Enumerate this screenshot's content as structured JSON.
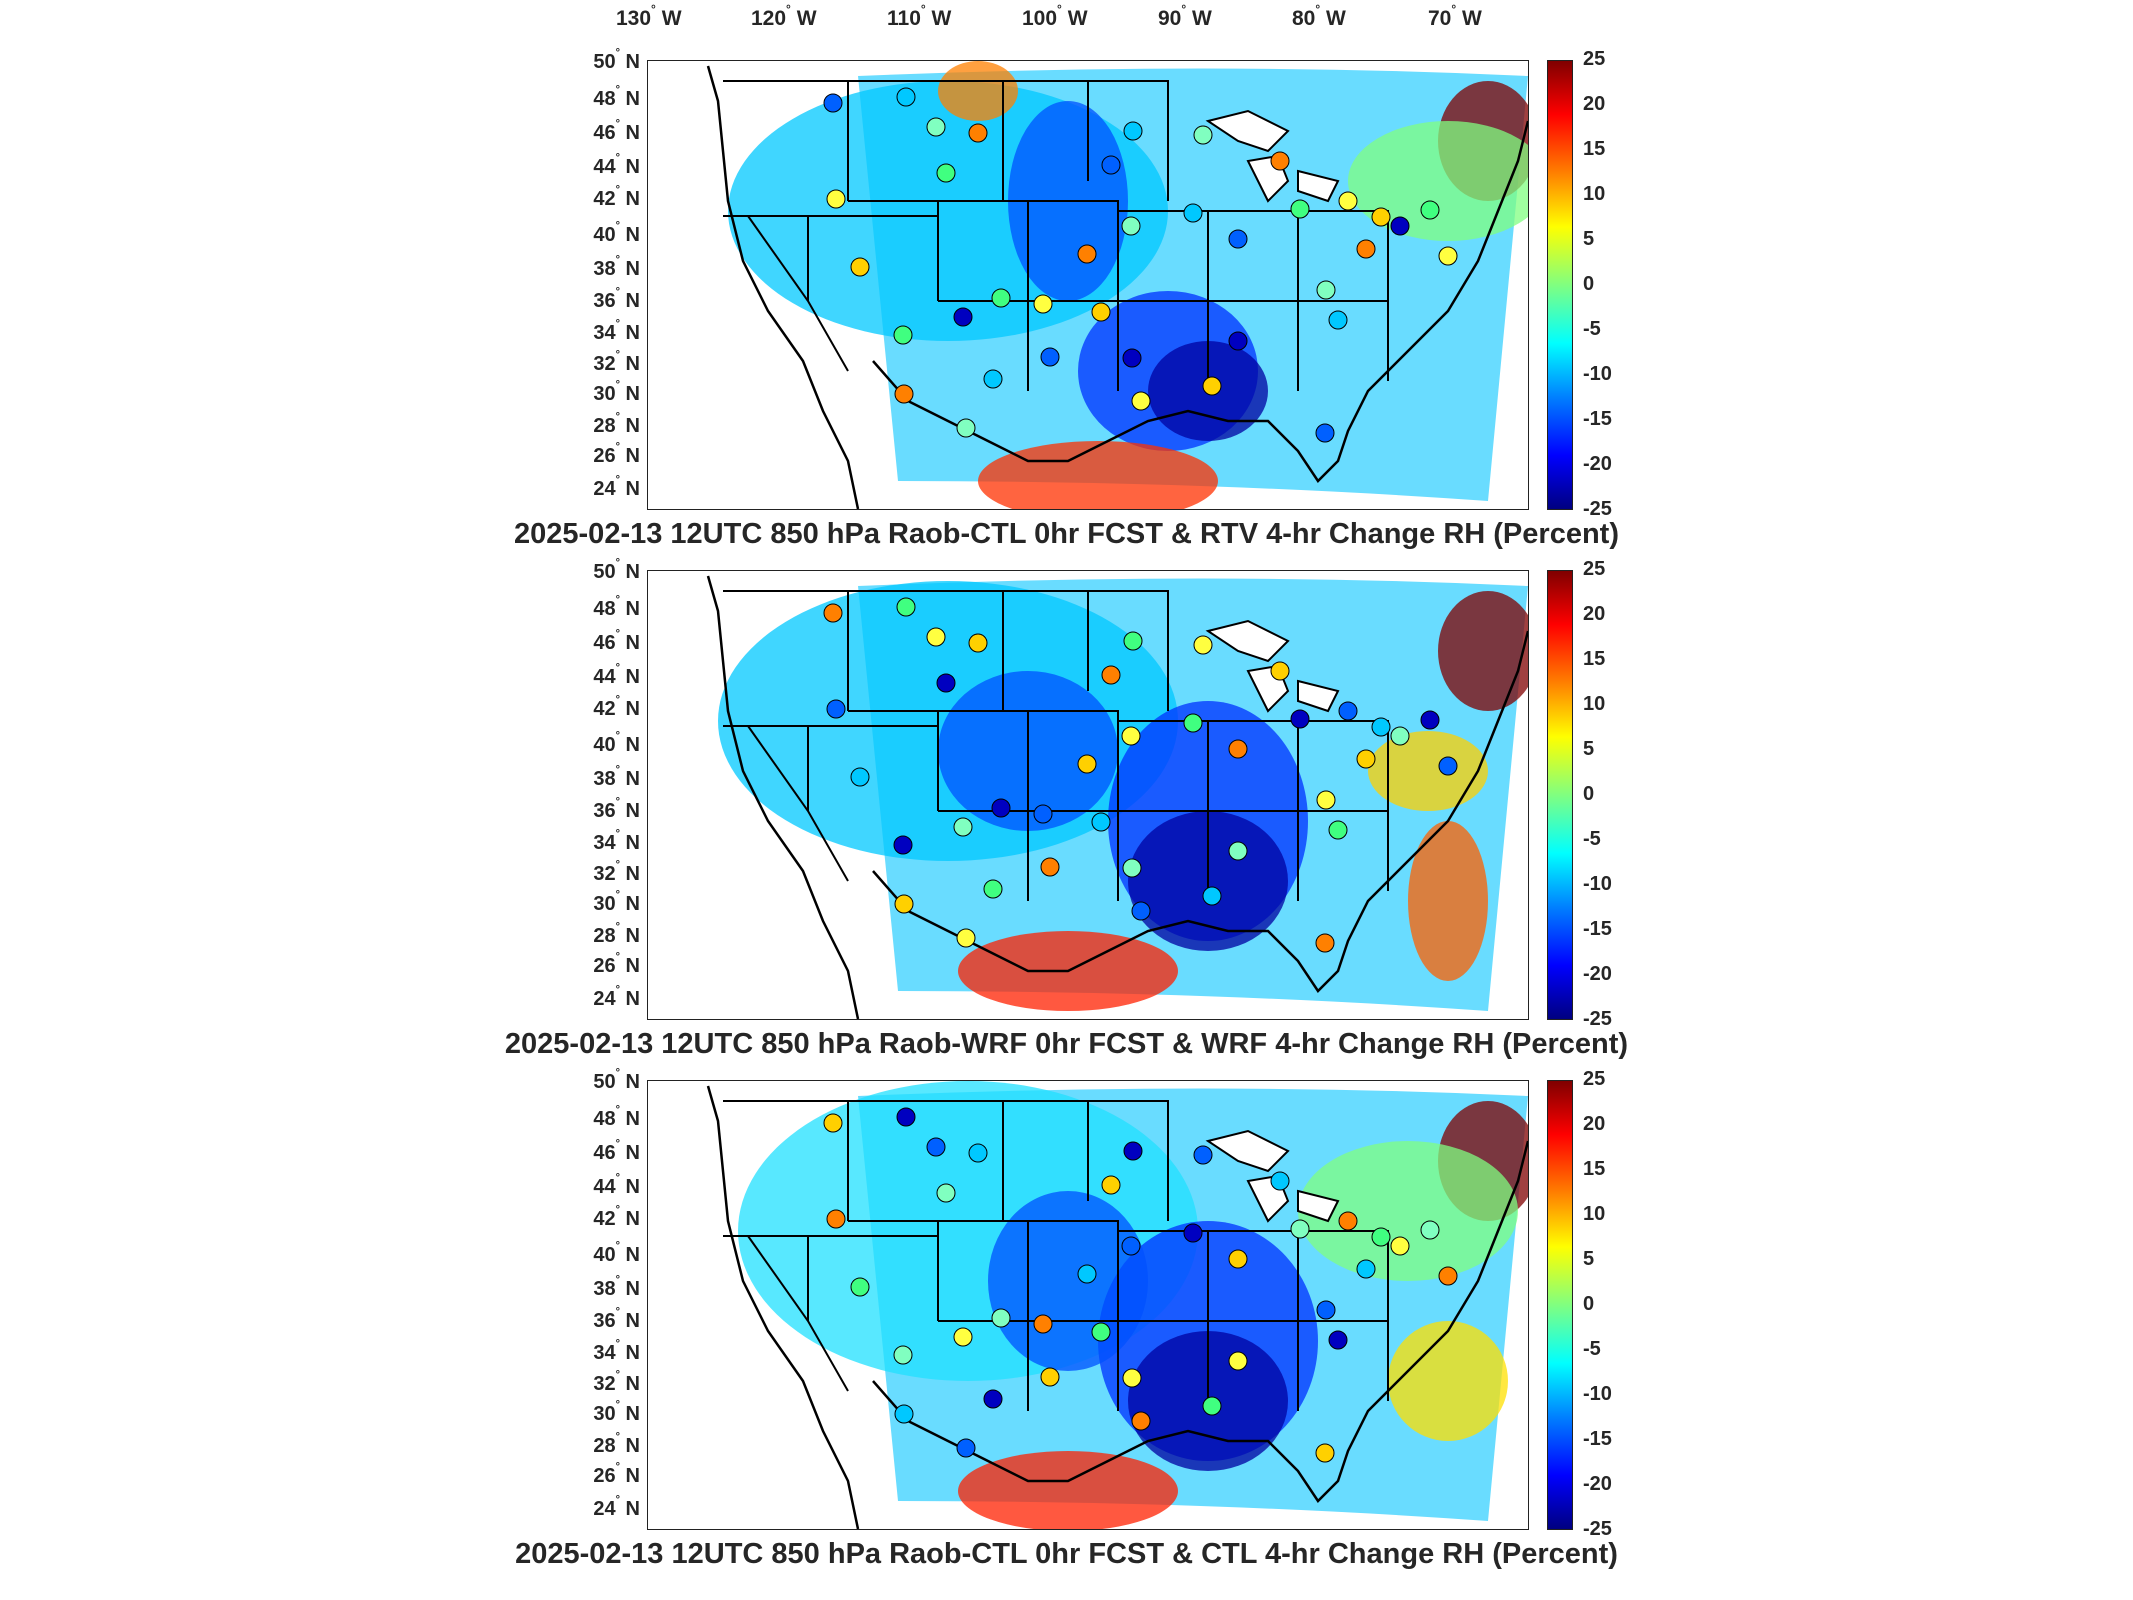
{
  "lon_labels": [
    "130",
    "120",
    "110",
    "100",
    "90",
    "80",
    "70"
  ],
  "lon_suffix": "W",
  "lat_labels": [
    "50",
    "48",
    "46",
    "44",
    "42",
    "40",
    "38",
    "36",
    "34",
    "32",
    "30",
    "28",
    "26",
    "24"
  ],
  "lat_suffix": "N",
  "degree_symbol": "°",
  "colorbar": {
    "ticks": [
      "25",
      "20",
      "15",
      "10",
      "5",
      "0",
      "-5",
      "-10",
      "-15",
      "-20",
      "-25"
    ],
    "range": [
      -25,
      25
    ],
    "colors": [
      "#800000",
      "#ff0000",
      "#ff8000",
      "#ffff00",
      "#80ff80",
      "#00ffff",
      "#0080ff",
      "#0000ff",
      "#000080"
    ]
  },
  "panels": [
    {
      "title": "2025-02-13 12UTC 850 hPa Raob-CTL 0hr FCST & RTV 4-hr Change RH (Percent)"
    },
    {
      "title": "2025-02-13 12UTC 850 hPa Raob-WRF 0hr FCST & WRF 4-hr Change RH (Percent)"
    },
    {
      "title": "2025-02-13 12UTC 850 hPa Raob-CTL 0hr FCST & CTL 4-hr Change RH (Percent)"
    }
  ]
}
